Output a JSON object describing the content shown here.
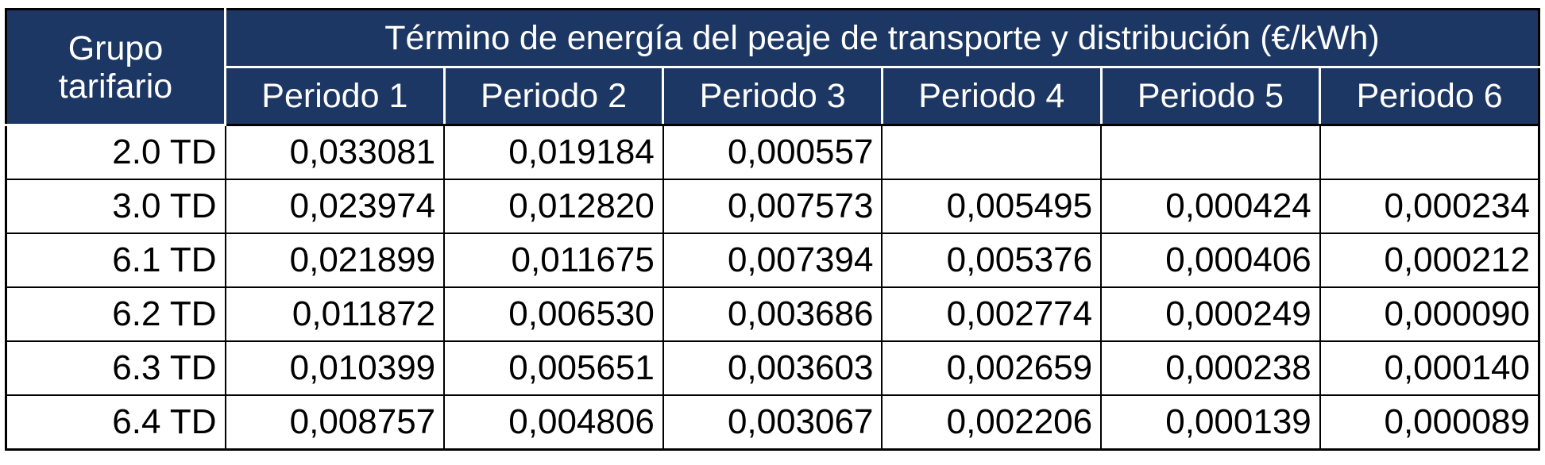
{
  "table": {
    "header": {
      "group": "Grupo tarifario",
      "title": "Término de energía del peaje de transporte y distribución (€/kWh)",
      "periods": [
        "Periodo 1",
        "Periodo 2",
        "Periodo 3",
        "Periodo 4",
        "Periodo 5",
        "Periodo 6"
      ]
    },
    "rows": [
      [
        "2.0 TD",
        "0,033081",
        "0,019184",
        "0,000557"
      ],
      [
        "3.0 TD",
        "0,023974",
        "0,012820",
        "0,007573",
        "0,005495",
        "0,000424",
        "0,000234"
      ],
      [
        "6.1 TD",
        "0,021899",
        "0,011675",
        "0,007394",
        "0,005376",
        "0,000406",
        "0,000212"
      ],
      [
        "6.2 TD",
        "0,011872",
        "0,006530",
        "0,003686",
        "0,002774",
        "0,000249",
        "0,000090"
      ],
      [
        "6.3 TD",
        "0,010399",
        "0,005651",
        "0,003603",
        "0,002659",
        "0,000238",
        "0,000140"
      ],
      [
        "6.4 TD",
        "0,008757",
        "0,004806",
        "0,003067",
        "0,002206",
        "0,000139",
        "0,000089"
      ]
    ]
  }
}
